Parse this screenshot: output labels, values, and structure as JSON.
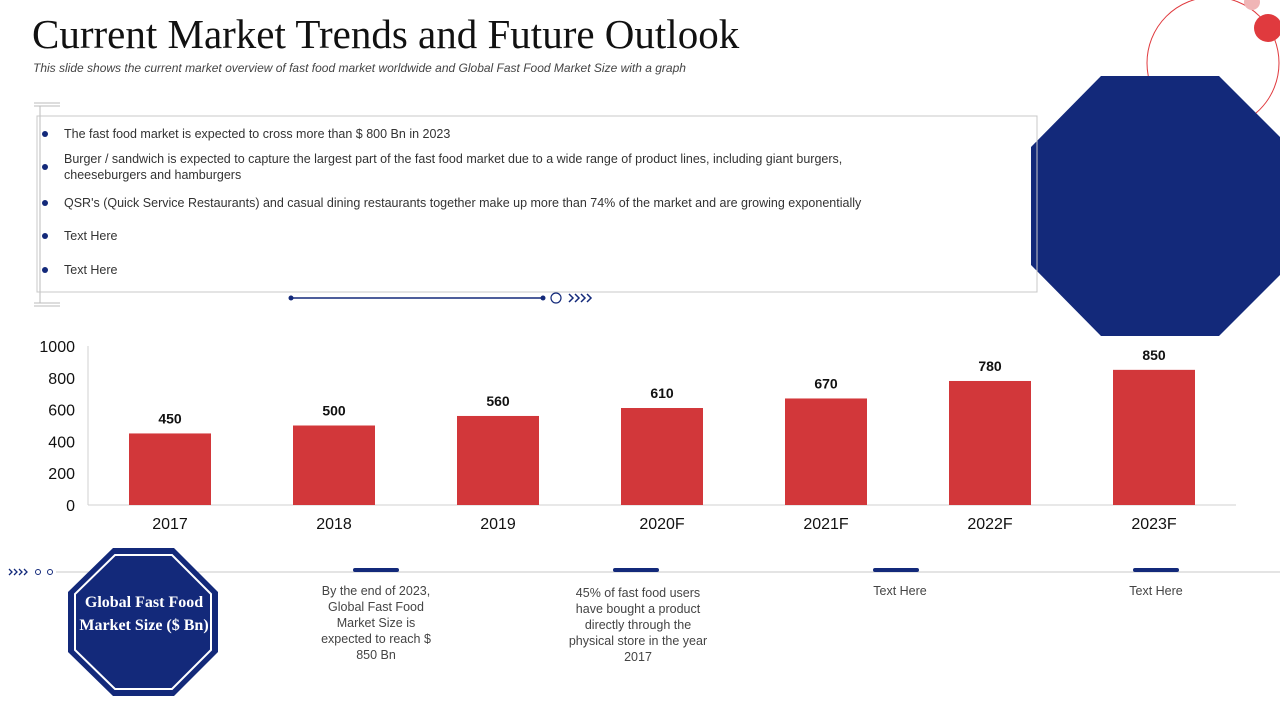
{
  "slide": {
    "title": "Current Market Trends and Future Outlook",
    "subtitle": "This slide shows the current market overview  of fast food market worldwide  and Global Fast Food Market Size with a graph"
  },
  "bullets": [
    {
      "text": "The fast food  market is expected to cross more than $ 800 Bn in 2023"
    },
    {
      "text": "Burger / sandwich is expected to capture the largest part of the fast food market due to a wide range of product lines, including giant burgers, cheeseburgers  and hamburgers"
    },
    {
      "text": "QSR's (Quick Service Restaurants) and casual dining restaurants together make up more than 74% of the market and are growing exponentially"
    },
    {
      "text": "Text Here"
    },
    {
      "text": "Text Here"
    }
  ],
  "badge": {
    "label": "Global Fast Food Market Size ($ Bn)"
  },
  "callouts": [
    {
      "text": "By the end of 2023, Global Fast Food Market Size is expected to reach $ 850 Bn"
    },
    {
      "text": "45% of fast food users have bought a product directly through the physical store in the year 2017"
    },
    {
      "text": "Text Here"
    },
    {
      "text": "Text Here"
    }
  ],
  "colors": {
    "navy": "#13297a",
    "red": "#d2373a",
    "accent_red": "#e03a3e"
  },
  "chart_data": {
    "type": "bar",
    "title": "",
    "xlabel": "",
    "ylabel": "",
    "categories": [
      "2017",
      "2018",
      "2019",
      "2020F",
      "2021F",
      "2022F",
      "2023F"
    ],
    "values": [
      450,
      500,
      560,
      610,
      670,
      780,
      850
    ],
    "data_labels": [
      "450",
      "500",
      "560",
      "610",
      "670",
      "780",
      "850"
    ],
    "yticks": [
      0,
      200,
      400,
      600,
      800,
      1000
    ],
    "ylim": [
      0,
      1000
    ],
    "grid": false
  }
}
